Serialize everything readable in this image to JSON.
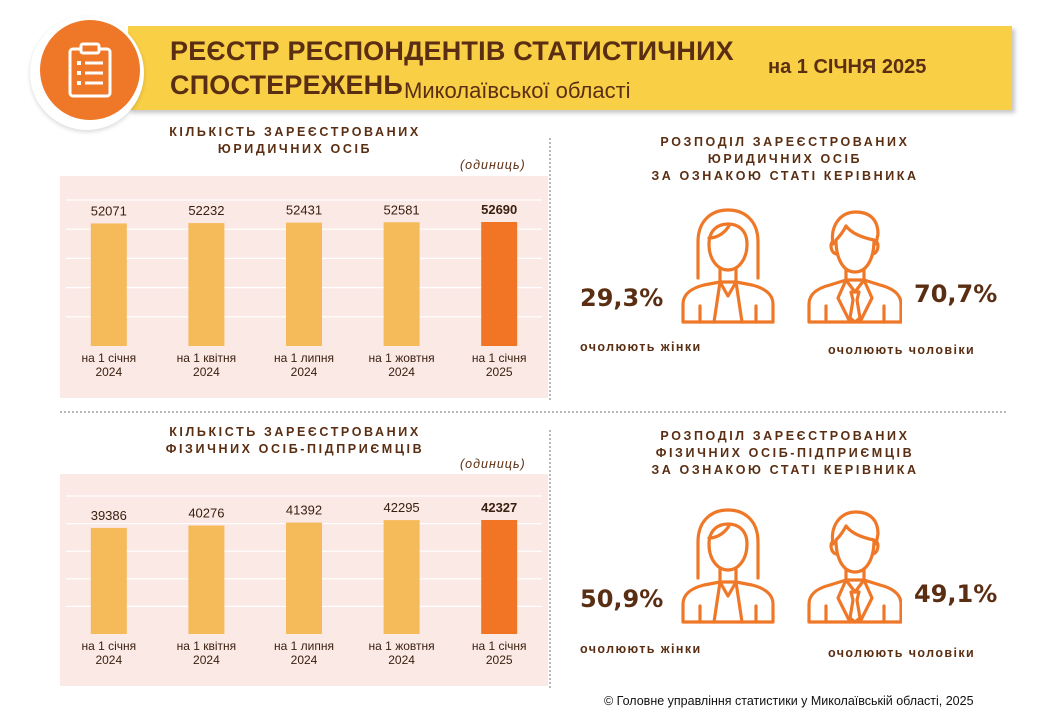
{
  "header": {
    "title_line1": "РЕЄСТР РЕСПОНДЕНТІВ СТАТИСТИЧНИХ",
    "title_line2": "СПОСТЕРЕЖЕНЬ",
    "region": "Миколаївської області",
    "date": "на 1 СІЧНЯ 2025",
    "icon": "clipboard-icon"
  },
  "colors": {
    "banner": "#f9cf45",
    "accent": "#ef7828",
    "bar": "#f5ba5a",
    "bar_highlight": "#f17524",
    "panel": "#fbe9e5",
    "text": "#5a2e12"
  },
  "legal": {
    "heading_line1": "КІЛЬКІСТЬ ЗАРЕЄСТРОВАНИХ",
    "heading_line2": "ЮРИДИЧНИХ ОСІБ",
    "units": "(одиниць)",
    "gender_heading_line1": "РОЗПОДІЛ ЗАРЕЄСТРОВАНИХ",
    "gender_heading_line2": "ЮРИДИЧНИХ ОСІБ",
    "gender_heading_line3": "ЗА ОЗНАКОЮ СТАТІ КЕРІВНИКА",
    "women_pct": "29,3%",
    "men_pct": "70,7%",
    "women_caption": "очолюють жінки",
    "men_caption": "очолюють чоловіки"
  },
  "individual": {
    "heading_line1": "КІЛЬКІСТЬ ЗАРЕЄСТРОВАНИХ",
    "heading_line2": "ФІЗИЧНИХ ОСІБ-ПІДПРИЄМЦІВ",
    "units": "(одиниць)",
    "gender_heading_line1": "РОЗПОДІЛ ЗАРЕЄСТРОВАНИХ",
    "gender_heading_line2": "ФІЗИЧНИХ ОСІБ-ПІДПРИЄМЦІВ",
    "gender_heading_line3": "ЗА ОЗНАКОЮ СТАТІ КЕРІВНИКА",
    "women_pct": "50,9%",
    "men_pct": "49,1%",
    "women_caption": "очолюють жінки",
    "men_caption": "очолюють чоловіки"
  },
  "footer": "© Головне управління статистики у Миколаївській області, 2025",
  "chart_data": [
    {
      "type": "bar",
      "categories": [
        [
          "на 1 січня",
          "2024"
        ],
        [
          "на 1 квітня",
          "2024"
        ],
        [
          "на 1 липня",
          "2024"
        ],
        [
          "на 1 жовтня",
          "2024"
        ],
        [
          "на 1 січня",
          "2025"
        ]
      ],
      "values": [
        52071,
        52232,
        52431,
        52581,
        52690
      ],
      "title": "КІЛЬКІСТЬ ЗАРЕЄСТРОВАНИХ ЮРИДИЧНИХ ОСІБ",
      "unit": "(одиниць)",
      "highlight_index": 4,
      "grid": true
    },
    {
      "type": "bar",
      "categories": [
        [
          "на 1 січня",
          "2024"
        ],
        [
          "на 1 квітня",
          "2024"
        ],
        [
          "на 1 липня",
          "2024"
        ],
        [
          "на 1 жовтня",
          "2024"
        ],
        [
          "на 1 січня",
          "2025"
        ]
      ],
      "values": [
        39386,
        40276,
        41392,
        42295,
        42327
      ],
      "title": "КІЛЬКІСТЬ ЗАРЕЄСТРОВАНИХ ФІЗИЧНИХ ОСІБ-ПІДПРИЄМЦІВ",
      "unit": "(одиниць)",
      "highlight_index": 4,
      "grid": true
    }
  ]
}
